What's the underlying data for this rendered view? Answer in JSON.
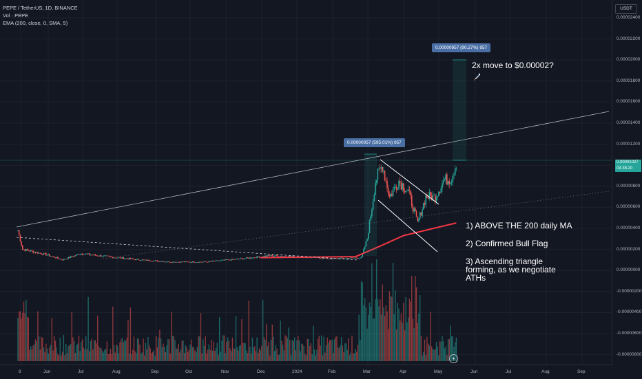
{
  "legend": {
    "symbol": "PEPE / TetherUS, 1D, BINANCE",
    "volume": "Vol · PEPE",
    "ema": "EMA (200, close, 0, SMA, 5)"
  },
  "price_axis": {
    "currency": "USDT",
    "ticks": [
      "0.00002400",
      "0.00002200",
      "0.00002000",
      "0.00001800",
      "0.00001600",
      "0.00001400",
      "0.00001200",
      "0.00001000",
      "0.00000800",
      "0.00000600",
      "0.00000400",
      "0.00000200",
      "0.00000000",
      "-0.00000200",
      "-0.00000400",
      "-0.00000600",
      "-0.00000800"
    ],
    "last_price": "0.00001027",
    "countdown": "04:38:20"
  },
  "time_axis": {
    "ticks": [
      "8",
      "Jun",
      "Jul",
      "Aug",
      "Sep",
      "Oct",
      "Nov",
      "Dec",
      "2024",
      "Feb",
      "Mar",
      "Apr",
      "May",
      "Jun",
      "Jul",
      "Aug",
      "Sep"
    ]
  },
  "measure_1": "0.00000957 (595.01%) 957",
  "measure_2": "0.00000957 (90.27%) 957",
  "target_note": "2x move to $0.00002?",
  "annotations": {
    "a1": "1) ABOVE THE 200 daily MA",
    "a2": "2) Confirmed Bull Flag",
    "a3a": "3) Ascending triangle",
    "a3b": "forming, as we negotiate",
    "a3c": "ATHs"
  },
  "colors": {
    "background": "#131722",
    "up": "#26a69a",
    "down": "#ef5350",
    "ema": "#f23645",
    "trendline": "#b2b5be",
    "measure": "#4a6fa5"
  },
  "chart_data": {
    "type": "candlestick",
    "title": "PEPE / TetherUS, 1D, BINANCE",
    "price_ylim": [
      -9e-07,
      2.5e-06
    ],
    "x_range": [
      "2023-05-08",
      "2024-09-30"
    ],
    "price_path": [
      {
        "date": "2023-05-08",
        "close": 3.8e-06
      },
      {
        "date": "2023-05-12",
        "close": 2e-06
      },
      {
        "date": "2023-06-01",
        "close": 1.5e-06
      },
      {
        "date": "2023-06-15",
        "close": 1e-06
      },
      {
        "date": "2023-07-01",
        "close": 1.6e-06
      },
      {
        "date": "2023-07-15",
        "close": 1.4e-06
      },
      {
        "date": "2023-08-01",
        "close": 1.2e-06
      },
      {
        "date": "2023-08-20",
        "close": 1e-06
      },
      {
        "date": "2023-09-15",
        "close": 8e-07
      },
      {
        "date": "2023-10-15",
        "close": 8e-07
      },
      {
        "date": "2023-11-15",
        "close": 1.1e-06
      },
      {
        "date": "2023-12-10",
        "close": 1.4e-06
      },
      {
        "date": "2024-01-01",
        "close": 1.3e-06
      },
      {
        "date": "2024-02-01",
        "close": 1.1e-06
      },
      {
        "date": "2024-02-25",
        "close": 1.2e-06
      },
      {
        "date": "2024-03-01",
        "close": 3e-06
      },
      {
        "date": "2024-03-05",
        "close": 6e-06
      },
      {
        "date": "2024-03-08",
        "close": 8.5e-06
      },
      {
        "date": "2024-03-14",
        "close": 1e-05
      },
      {
        "date": "2024-03-20",
        "close": 7e-06
      },
      {
        "date": "2024-03-28",
        "close": 8.5e-06
      },
      {
        "date": "2024-04-05",
        "close": 7.5e-06
      },
      {
        "date": "2024-04-13",
        "close": 4.5e-06
      },
      {
        "date": "2024-04-20",
        "close": 7e-06
      },
      {
        "date": "2024-04-28",
        "close": 7e-06
      },
      {
        "date": "2024-05-05",
        "close": 8.5e-06
      },
      {
        "date": "2024-05-12",
        "close": 8.8e-06
      },
      {
        "date": "2024-05-16",
        "close": 1.03e-05
      }
    ],
    "ema200": [
      {
        "date": "2023-12-01",
        "value": 1.2e-06
      },
      {
        "date": "2024-02-20",
        "value": 1.3e-06
      },
      {
        "date": "2024-03-10",
        "value": 2.2e-06
      },
      {
        "date": "2024-04-01",
        "value": 3.3e-06
      },
      {
        "date": "2024-05-16",
        "value": 4.5e-06
      }
    ],
    "volume_relative": "spike in early March 2024",
    "series": [
      {
        "name": "PEPE / TetherUS, 1D, BINANCE"
      },
      {
        "name": "EMA (200, close, 0, SMA, 5)"
      }
    ]
  }
}
